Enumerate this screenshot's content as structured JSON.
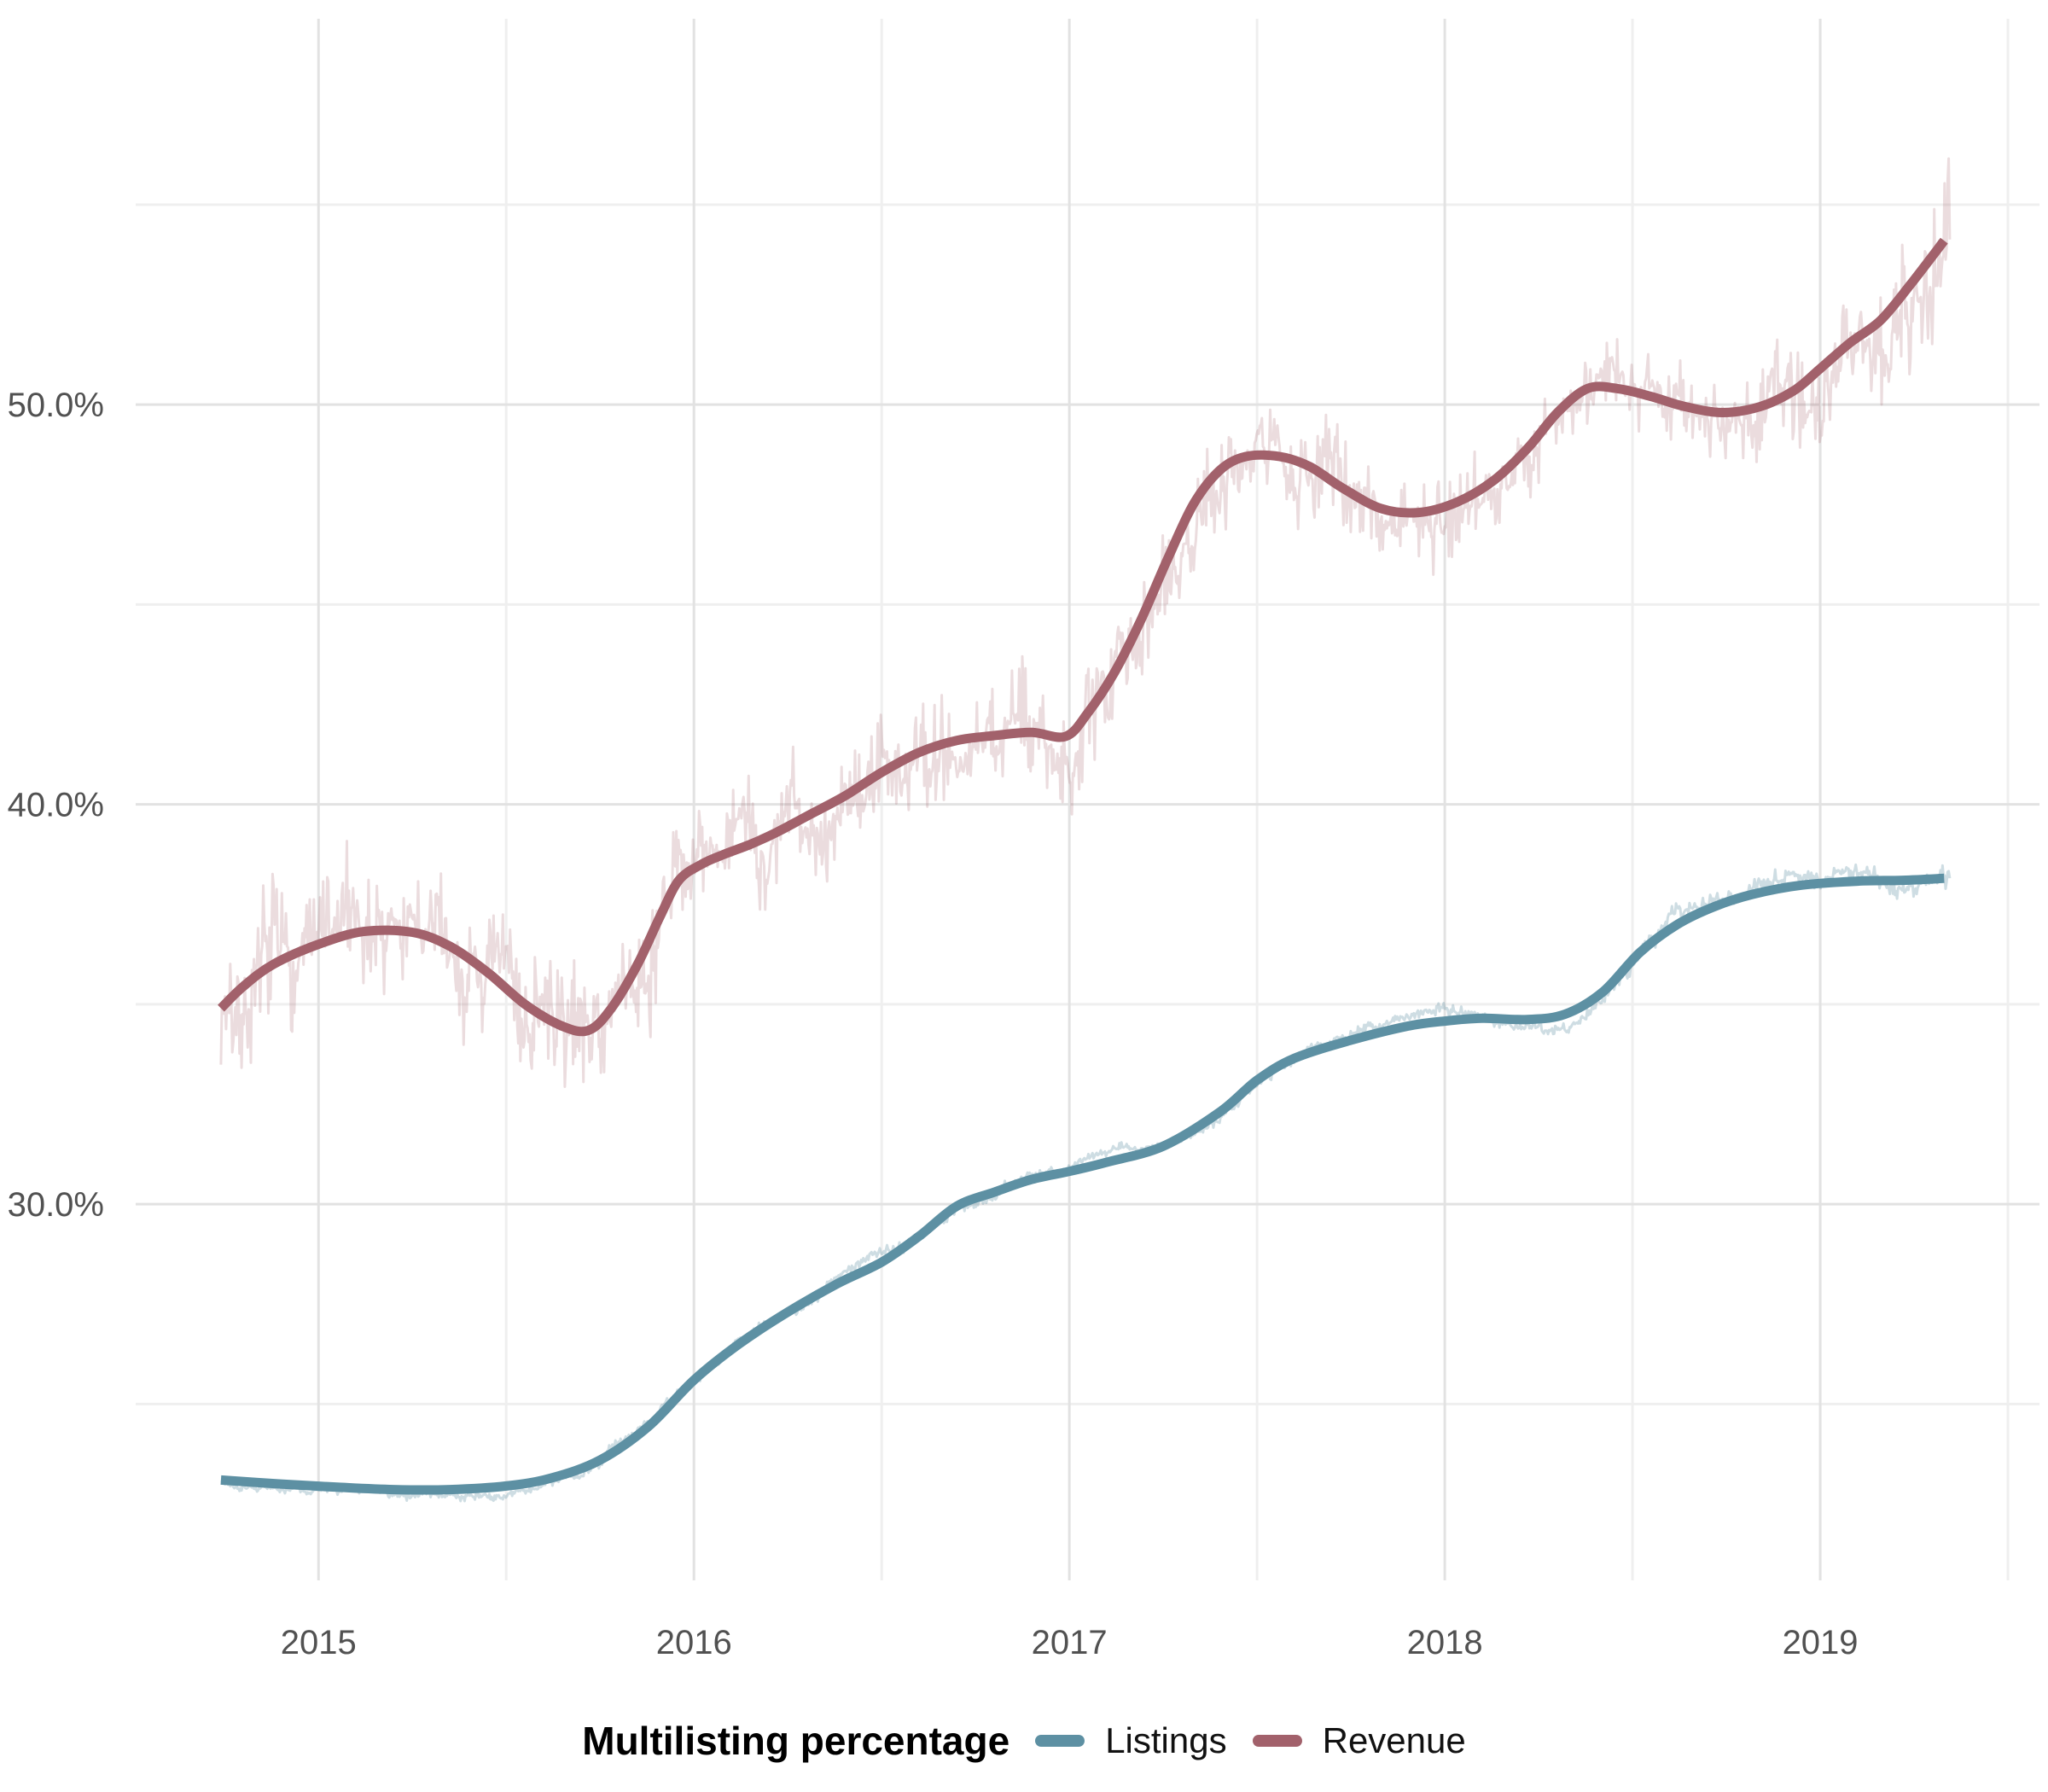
{
  "page": {
    "background": "#ffffff"
  },
  "legend": {
    "title": "Multilisting percentage",
    "items": [
      {
        "label": "Listings",
        "color": "#5d90a3"
      },
      {
        "label": "Revenue",
        "color": "#a2616b"
      }
    ]
  },
  "chart_data": {
    "type": "line",
    "title": "",
    "legend_title": "Multilisting percentage",
    "legend_position": "bottom",
    "grid": {
      "major_color": "#e2e2e2",
      "minor_color": "#efefef",
      "background": "#ffffff"
    },
    "axis_text_color": "#515151",
    "x_domain": [
      2014.513,
      2019.584
    ],
    "y_domain": [
      20.59,
      59.65
    ],
    "x_major_ticks": [
      2015,
      2016,
      2017,
      2018,
      2019
    ],
    "x_tick_labels": [
      "2015",
      "2016",
      "2017",
      "2018",
      "2019"
    ],
    "x_minor_ticks": [
      2015.5,
      2016.5,
      2017.5,
      2018.5,
      2019.5
    ],
    "y_major_ticks": [
      30,
      40,
      50
    ],
    "y_tick_labels": [
      "30.0%",
      "40.0%",
      "50.0%"
    ],
    "y_minor_ticks": [
      25,
      35,
      45,
      55
    ],
    "ylabel": "",
    "xlabel": "",
    "series": [
      {
        "name": "Listings",
        "color": "#5d90a3",
        "smooth_width": 11,
        "raw_width": 3,
        "raw_opacity": 0.3,
        "smooth": [
          [
            2014.74,
            23.1
          ],
          [
            2014.9,
            23.0
          ],
          [
            2015.05,
            22.92
          ],
          [
            2015.2,
            22.86
          ],
          [
            2015.35,
            22.86
          ],
          [
            2015.5,
            22.95
          ],
          [
            2015.62,
            23.15
          ],
          [
            2015.75,
            23.6
          ],
          [
            2015.88,
            24.45
          ],
          [
            2016.0,
            25.6
          ],
          [
            2016.12,
            26.5
          ],
          [
            2016.25,
            27.3
          ],
          [
            2016.38,
            28.0
          ],
          [
            2016.5,
            28.55
          ],
          [
            2016.6,
            29.2
          ],
          [
            2016.7,
            29.95
          ],
          [
            2016.8,
            30.3
          ],
          [
            2016.9,
            30.62
          ],
          [
            2017.0,
            30.82
          ],
          [
            2017.1,
            31.05
          ],
          [
            2017.25,
            31.45
          ],
          [
            2017.4,
            32.3
          ],
          [
            2017.5,
            33.1
          ],
          [
            2017.6,
            33.65
          ],
          [
            2017.75,
            34.1
          ],
          [
            2017.9,
            34.45
          ],
          [
            2018.0,
            34.58
          ],
          [
            2018.1,
            34.65
          ],
          [
            2018.22,
            34.62
          ],
          [
            2018.32,
            34.75
          ],
          [
            2018.42,
            35.3
          ],
          [
            2018.52,
            36.3
          ],
          [
            2018.62,
            37.0
          ],
          [
            2018.72,
            37.45
          ],
          [
            2018.82,
            37.75
          ],
          [
            2018.95,
            37.98
          ],
          [
            2019.1,
            38.08
          ],
          [
            2019.22,
            38.1
          ],
          [
            2019.33,
            38.15
          ]
        ],
        "noise": {
          "seed": 101,
          "points": 1675,
          "slow_persist": 0.985,
          "slow_innovation": 0.17,
          "slow_gain": 0.9,
          "spike_gain": 0.45,
          "envelope": [
            [
              2014.74,
              0.22
            ],
            [
              2015.5,
              0.25
            ],
            [
              2016.0,
              0.3
            ],
            [
              2016.8,
              0.32
            ],
            [
              2017.3,
              0.28
            ],
            [
              2018.0,
              0.3
            ],
            [
              2018.5,
              0.4
            ],
            [
              2019.0,
              0.5
            ],
            [
              2019.33,
              0.55
            ]
          ]
        }
      },
      {
        "name": "Revenue",
        "color": "#a2616b",
        "smooth_width": 11,
        "raw_width": 3,
        "raw_opacity": 0.22,
        "smooth": [
          [
            2014.74,
            34.9
          ],
          [
            2014.8,
            35.45
          ],
          [
            2014.88,
            36.0
          ],
          [
            2015.0,
            36.5
          ],
          [
            2015.12,
            36.82
          ],
          [
            2015.25,
            36.8
          ],
          [
            2015.35,
            36.45
          ],
          [
            2015.45,
            35.8
          ],
          [
            2015.55,
            35.0
          ],
          [
            2015.65,
            34.45
          ],
          [
            2015.72,
            34.35
          ],
          [
            2015.78,
            34.9
          ],
          [
            2015.85,
            36.0
          ],
          [
            2015.91,
            37.2
          ],
          [
            2015.96,
            38.1
          ],
          [
            2016.02,
            38.5
          ],
          [
            2016.08,
            38.75
          ],
          [
            2016.15,
            39.0
          ],
          [
            2016.22,
            39.3
          ],
          [
            2016.3,
            39.7
          ],
          [
            2016.4,
            40.2
          ],
          [
            2016.5,
            40.8
          ],
          [
            2016.6,
            41.3
          ],
          [
            2016.7,
            41.6
          ],
          [
            2016.8,
            41.72
          ],
          [
            2016.9,
            41.8
          ],
          [
            2016.99,
            41.7
          ],
          [
            2017.05,
            42.3
          ],
          [
            2017.12,
            43.3
          ],
          [
            2017.19,
            44.6
          ],
          [
            2017.26,
            46.1
          ],
          [
            2017.33,
            47.5
          ],
          [
            2017.4,
            48.35
          ],
          [
            2017.47,
            48.7
          ],
          [
            2017.56,
            48.7
          ],
          [
            2017.64,
            48.45
          ],
          [
            2017.73,
            47.9
          ],
          [
            2017.83,
            47.4
          ],
          [
            2017.93,
            47.3
          ],
          [
            2018.03,
            47.55
          ],
          [
            2018.13,
            48.1
          ],
          [
            2018.22,
            48.9
          ],
          [
            2018.3,
            49.8
          ],
          [
            2018.38,
            50.4
          ],
          [
            2018.46,
            50.4
          ],
          [
            2018.55,
            50.2
          ],
          [
            2018.64,
            49.95
          ],
          [
            2018.74,
            49.8
          ],
          [
            2018.84,
            49.95
          ],
          [
            2018.93,
            50.35
          ],
          [
            2019.0,
            50.9
          ],
          [
            2019.08,
            51.55
          ],
          [
            2019.16,
            52.1
          ],
          [
            2019.24,
            53.0
          ],
          [
            2019.33,
            54.1
          ]
        ],
        "noise": {
          "seed": 7,
          "points": 1675,
          "slow_persist": 0.93,
          "slow_innovation": 0.37,
          "slow_gain": 0.62,
          "spike_gain": 0.9,
          "envelope": [
            [
              2014.74,
              1.7
            ],
            [
              2015.5,
              1.8
            ],
            [
              2015.95,
              1.6
            ],
            [
              2016.6,
              1.5
            ],
            [
              2017.0,
              1.4
            ],
            [
              2017.6,
              1.3
            ],
            [
              2018.2,
              1.1
            ],
            [
              2018.75,
              1.0
            ],
            [
              2019.0,
              1.6
            ],
            [
              2019.33,
              2.0
            ]
          ]
        }
      }
    ]
  }
}
